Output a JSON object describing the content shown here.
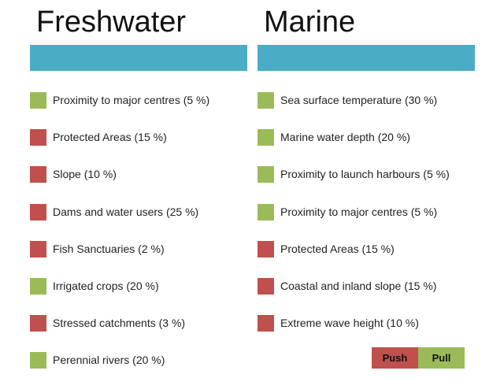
{
  "colors": {
    "header_bar": "#4bacc6",
    "push": "#c0504d",
    "pull": "#9bbb59"
  },
  "freshwater": {
    "title": "Freshwater",
    "items": [
      {
        "label": "Proximity to major centres (5 %)",
        "type": "pull"
      },
      {
        "label": "Protected Areas (15 %)",
        "type": "push"
      },
      {
        "label": "Slope (10 %)",
        "type": "push"
      },
      {
        "label": "Dams and water users (25 %)",
        "type": "push"
      },
      {
        "label": "Fish Sanctuaries (2 %)",
        "type": "push"
      },
      {
        "label": "Irrigated crops (20 %)",
        "type": "pull"
      },
      {
        "label": "Stressed catchments (3 %)",
        "type": "push"
      },
      {
        "label": "Perennial rivers (20 %)",
        "type": "pull"
      }
    ]
  },
  "marine": {
    "title": "Marine",
    "items": [
      {
        "label": "Sea surface temperature (30 %)",
        "type": "pull"
      },
      {
        "label": "Marine water depth (20 %)",
        "type": "pull"
      },
      {
        "label": "Proximity to launch harbours (5 %)",
        "type": "pull"
      },
      {
        "label": "Proximity to major centres (5 %)",
        "type": "pull"
      },
      {
        "label": "Protected Areas (15 %)",
        "type": "push"
      },
      {
        "label": "Coastal and inland slope (15 %)",
        "type": "push"
      },
      {
        "label": "Extreme wave height (10 %)",
        "type": "push"
      }
    ]
  },
  "legend": {
    "push_label": "Push",
    "pull_label": "Pull"
  }
}
